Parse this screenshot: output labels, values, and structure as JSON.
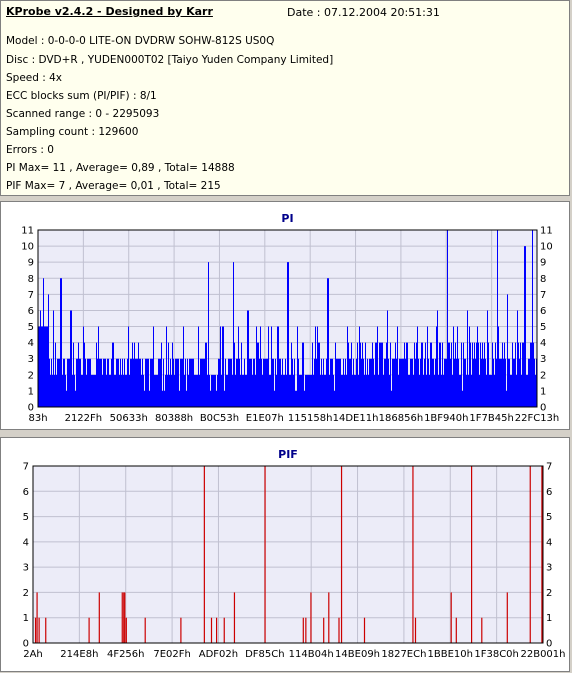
{
  "header": {
    "title": "KProbe v2.4.2 - Designed by Karr",
    "date": "Date : 07.12.2004 20:51:31",
    "lines": [
      "Model : 0-0-0-0 LITE-ON DVDRW SOHW-812S  US0Q",
      "Disc : DVD+R , YUDEN000T02 [Taiyo Yuden Company Limited]",
      "Speed : 4x",
      "ECC blocks sum (PI/PIF) : 8/1",
      "Scanned range : 0 - 2295093",
      "Sampling count : 129600",
      "Errors : 0",
      "PI Max= 11 , Average= 0,89 , Total= 14888",
      "PIF Max= 7 , Average= 0,01 , Total= 215"
    ]
  },
  "chart_data": [
    {
      "type": "bar",
      "title": "PI",
      "ylim": [
        0,
        11
      ],
      "yticks": [
        0,
        1,
        2,
        3,
        4,
        5,
        6,
        7,
        8,
        9,
        10,
        11
      ],
      "xtick_labels": [
        "83h",
        "2122Fh",
        "50633h",
        "80388h",
        "B0C53h",
        "E1E07h",
        "115158h",
        "14DE11h",
        "186856h",
        "1BF940h",
        "1F7B45h",
        "22FC13h"
      ],
      "grid": true,
      "color": "#0000ff",
      "description_of_values": "PI errors per sample across scanned range; baseline ~2-3, peaks up to 11",
      "peaks": [
        [
          0.004,
          6
        ],
        [
          0.01,
          8
        ],
        [
          0.02,
          7
        ],
        [
          0.03,
          6
        ],
        [
          0.045,
          8
        ],
        [
          0.065,
          6
        ],
        [
          0.09,
          5
        ],
        [
          0.12,
          5
        ],
        [
          0.15,
          4
        ],
        [
          0.18,
          5
        ],
        [
          0.2,
          4
        ],
        [
          0.23,
          5
        ],
        [
          0.26,
          4
        ],
        [
          0.29,
          5
        ],
        [
          0.32,
          4
        ],
        [
          0.34,
          9
        ],
        [
          0.37,
          5
        ],
        [
          0.39,
          9
        ],
        [
          0.42,
          6
        ],
        [
          0.44,
          4
        ],
        [
          0.48,
          5
        ],
        [
          0.5,
          9
        ],
        [
          0.53,
          4
        ],
        [
          0.56,
          4
        ],
        [
          0.58,
          8
        ],
        [
          0.62,
          5
        ],
        [
          0.65,
          4
        ],
        [
          0.68,
          5
        ],
        [
          0.7,
          6
        ],
        [
          0.72,
          5
        ],
        [
          0.74,
          4
        ],
        [
          0.76,
          5
        ],
        [
          0.78,
          5
        ],
        [
          0.8,
          6
        ],
        [
          0.82,
          11
        ],
        [
          0.84,
          5
        ],
        [
          0.86,
          6
        ],
        [
          0.88,
          5
        ],
        [
          0.9,
          6
        ],
        [
          0.92,
          11
        ],
        [
          0.94,
          7
        ],
        [
          0.96,
          6
        ],
        [
          0.975,
          10
        ],
        [
          0.99,
          11
        ]
      ],
      "baseline": 2
    },
    {
      "type": "bar",
      "title": "PIF",
      "ylim": [
        0,
        7
      ],
      "yticks": [
        0,
        1,
        2,
        3,
        4,
        5,
        6,
        7
      ],
      "xtick_labels": [
        "2Ah",
        "214E8h",
        "4F256h",
        "7E02Fh",
        "ADF02h",
        "DF85Ch",
        "114B04h",
        "14BE09h",
        "1827ECh",
        "1BBE10h",
        "1F38C0h",
        "22B001h"
      ],
      "grid": true,
      "color": "#cc0000",
      "spikes": [
        [
          0.005,
          1
        ],
        [
          0.008,
          2
        ],
        [
          0.012,
          1
        ],
        [
          0.025,
          1
        ],
        [
          0.11,
          1
        ],
        [
          0.13,
          2
        ],
        [
          0.175,
          2
        ],
        [
          0.178,
          2
        ],
        [
          0.18,
          2
        ],
        [
          0.183,
          1
        ],
        [
          0.22,
          1
        ],
        [
          0.29,
          1
        ],
        [
          0.336,
          7
        ],
        [
          0.35,
          1
        ],
        [
          0.36,
          1
        ],
        [
          0.375,
          1
        ],
        [
          0.395,
          2
        ],
        [
          0.455,
          7
        ],
        [
          0.53,
          1
        ],
        [
          0.535,
          1
        ],
        [
          0.545,
          2
        ],
        [
          0.57,
          1
        ],
        [
          0.58,
          2
        ],
        [
          0.6,
          1
        ],
        [
          0.605,
          7
        ],
        [
          0.65,
          1
        ],
        [
          0.745,
          7
        ],
        [
          0.75,
          1
        ],
        [
          0.82,
          2
        ],
        [
          0.83,
          1
        ],
        [
          0.86,
          7
        ],
        [
          0.88,
          1
        ],
        [
          0.93,
          2
        ],
        [
          0.975,
          7
        ],
        [
          1.0,
          7
        ],
        [
          1.003,
          7
        ]
      ]
    }
  ],
  "colors": {
    "pi_bar": "#0000ff",
    "pif_bar": "#cc0000",
    "grid": "#c0c0d0",
    "plot_bg": "#ececf8",
    "title": "#00008b"
  }
}
